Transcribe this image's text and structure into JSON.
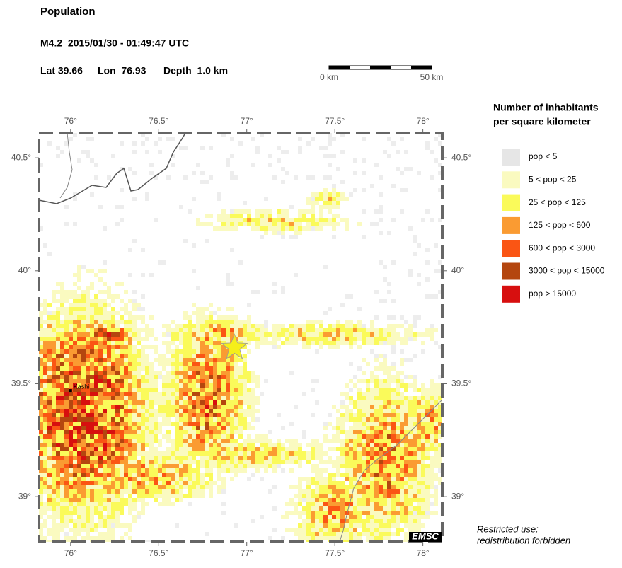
{
  "header": {
    "title": "Population",
    "event": "M4.2  2015/01/30 - 01:49:47 UTC",
    "lat": "Lat 39.66",
    "lon": "Lon  76.93",
    "depth": "Depth  1.0 km"
  },
  "scale_bar": {
    "start": "0 km",
    "end": "50 km"
  },
  "map": {
    "xlim": [
      75.82,
      78.11
    ],
    "ylim": [
      38.8,
      40.61
    ],
    "xticks": [
      {
        "value": 76,
        "label": "76°"
      },
      {
        "value": 76.5,
        "label": "76.5°"
      },
      {
        "value": 77,
        "label": "77°"
      },
      {
        "value": 77.5,
        "label": "77.5°"
      },
      {
        "value": 78,
        "label": "78°"
      }
    ],
    "yticks": [
      {
        "value": 39,
        "label": "39°"
      },
      {
        "value": 39.5,
        "label": "39.5°"
      },
      {
        "value": 40,
        "label": "40°"
      },
      {
        "value": 40.5,
        "label": "40.5°"
      }
    ],
    "epicenter": {
      "lon": 76.93,
      "lat": 39.66
    },
    "cities": [
      {
        "name": "Kashi",
        "lon": 76.0,
        "lat": 39.47
      }
    ],
    "watermark": "EMSC"
  },
  "legend": {
    "title_lines": [
      "Number of inhabitants",
      "per square kilometer"
    ],
    "items": [
      {
        "label": "pop < 5",
        "color": "#e6e6e6"
      },
      {
        "label": "5 < pop < 25",
        "color": "#fafac0"
      },
      {
        "label": "25 < pop < 125",
        "color": "#fafa5a"
      },
      {
        "label": "125 < pop < 600",
        "color": "#fa9b32"
      },
      {
        "label": "600 < pop < 3000",
        "color": "#fa5514"
      },
      {
        "label": "3000 < pop < 15000",
        "color": "#b4460f"
      },
      {
        "label": "pop > 15000",
        "color": "#d70f0f"
      }
    ]
  },
  "footer": [
    "Restricted use:",
    "redistribution forbidden"
  ]
}
